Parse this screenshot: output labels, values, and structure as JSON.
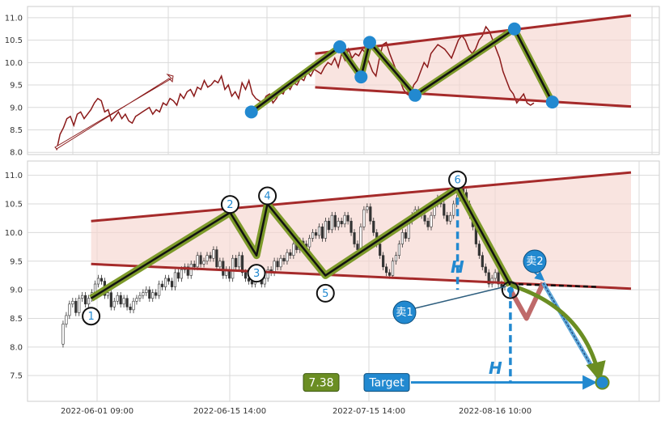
{
  "chart_data": [
    {
      "type": "line",
      "panel": "top",
      "ylim": [
        7.95,
        11.25
      ],
      "yticks": [
        "8.0",
        "8.5",
        "9.0",
        "9.5",
        "10.0",
        "10.5",
        "11.0"
      ],
      "grid": true,
      "price": [
        8.05,
        8.4,
        8.55,
        8.75,
        8.8,
        8.6,
        8.85,
        8.9,
        8.75,
        8.85,
        8.95,
        9.1,
        9.2,
        9.15,
        8.9,
        8.95,
        8.7,
        8.8,
        8.9,
        8.75,
        8.85,
        8.7,
        8.65,
        8.8,
        8.85,
        8.9,
        8.95,
        9.0,
        8.85,
        8.95,
        8.9,
        9.1,
        9.05,
        9.2,
        9.15,
        9.05,
        9.3,
        9.2,
        9.35,
        9.4,
        9.25,
        9.45,
        9.4,
        9.6,
        9.45,
        9.5,
        9.6,
        9.55,
        9.7,
        9.4,
        9.5,
        9.25,
        9.35,
        9.2,
        9.55,
        9.4,
        9.6,
        9.3,
        9.2,
        9.15,
        9.1,
        9.25,
        9.3,
        9.1,
        9.2,
        9.35,
        9.3,
        9.5,
        9.4,
        9.55,
        9.5,
        9.65,
        9.6,
        9.8,
        9.7,
        9.85,
        9.8,
        9.75,
        9.9,
        10.0,
        9.95,
        10.1,
        9.9,
        10.2,
        10.05,
        10.3,
        10.1,
        10.2,
        10.15,
        10.3,
        10.2,
        10.0,
        9.8,
        9.7,
        10.1,
        10.4,
        10.45,
        10.2,
        10.0,
        9.8,
        9.6,
        9.4,
        9.3,
        9.25,
        9.5,
        9.6,
        9.8,
        10.0,
        9.9,
        10.2,
        10.3,
        10.4,
        10.35,
        10.3,
        10.2,
        10.1,
        10.3,
        10.5,
        10.6,
        10.5,
        10.3,
        10.2,
        10.3,
        10.5,
        10.6,
        10.8,
        10.7,
        10.5,
        10.3,
        10.1,
        9.8,
        9.6,
        9.4,
        9.3,
        9.1,
        9.2,
        9.3,
        9.1,
        9.05,
        9.1
      ],
      "upper_channel": {
        "start": [
          0.45,
          10.2
        ],
        "end": [
          1.0,
          11.05
        ]
      },
      "lower_channel": {
        "start": [
          0.45,
          9.45
        ],
        "end": [
          1.0,
          9.02
        ]
      },
      "pivots": [
        {
          "x": 0.339,
          "y": 8.9
        },
        {
          "x": 0.493,
          "y": 10.35
        },
        {
          "x": 0.53,
          "y": 9.68
        },
        {
          "x": 0.545,
          "y": 10.45
        },
        {
          "x": 0.624,
          "y": 9.27
        },
        {
          "x": 0.797,
          "y": 10.75
        },
        {
          "x": 0.863,
          "y": 9.12
        }
      ]
    },
    {
      "type": "candlestick",
      "panel": "bottom",
      "ylim": [
        7.05,
        11.25
      ],
      "yticks": [
        "7.5",
        "8.0",
        "8.5",
        "9.0",
        "9.5",
        "10.0",
        "10.5",
        "11.0"
      ],
      "xticks": [
        "2022-06-01 09:00",
        "2022-06-15 14:00",
        "2022-07-15 14:00",
        "2022-08-16 10:00"
      ],
      "grid": true,
      "upper_channel": {
        "start": [
          0.06,
          10.2
        ],
        "end": [
          1.0,
          11.05
        ]
      },
      "lower_channel": {
        "start": [
          0.06,
          9.45
        ],
        "end": [
          1.0,
          9.02
        ]
      },
      "pivots": [
        {
          "label": "1",
          "x": 0.06,
          "y": 8.85
        },
        {
          "label": "2",
          "x": 0.302,
          "y": 10.35
        },
        {
          "label": "3",
          "x": 0.348,
          "y": 9.6
        },
        {
          "label": "4",
          "x": 0.367,
          "y": 10.5
        },
        {
          "label": "5",
          "x": 0.468,
          "y": 9.25
        },
        {
          "label": "6",
          "x": 0.698,
          "y": 10.78
        },
        {
          "label": "",
          "x": 0.79,
          "y": 9.08
        }
      ],
      "sell_points": [
        {
          "label": "卖1",
          "x": 0.79,
          "y": 9.0
        },
        {
          "label": "卖2",
          "x": 0.847,
          "y": 9.12
        }
      ],
      "pullback": [
        [
          0.79,
          9.0
        ],
        [
          0.818,
          8.5
        ],
        [
          0.847,
          9.12
        ]
      ],
      "target_point": {
        "x": 0.95,
        "y": 7.38
      },
      "measure_label": "H",
      "target_label": "Target",
      "target_value": "7.38"
    }
  ],
  "colors": {
    "channel_line": "#a52a2a",
    "channel_fill": "#f6d5d0",
    "price_line": "#8b1a1a",
    "zigzag_outer": "#7d9a2a",
    "zigzag_inner": "#111111",
    "pivot_fill": "#2289d0",
    "target_badge": "#2289d0",
    "value_badge": "#6b8e23",
    "grid": "#d9d9d9"
  }
}
